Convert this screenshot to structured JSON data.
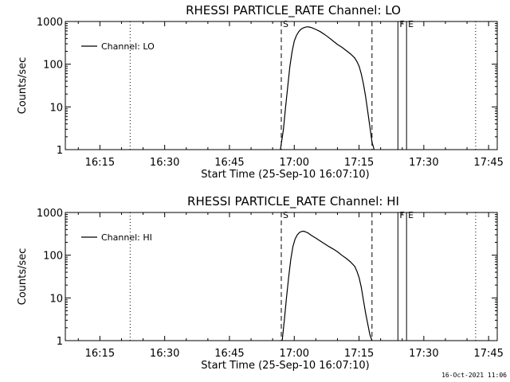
{
  "chart_data": [
    {
      "type": "line",
      "title": "RHESSI PARTICLE_RATE Channel: LO",
      "xlabel": "Start Time (25-Sep-10 16:07:10)",
      "ylabel": "Counts/sec",
      "yscale": "log",
      "ylim": [
        1,
        1000
      ],
      "yticks": [
        "1",
        "10",
        "100",
        "1000"
      ],
      "xlim": [
        "16:07",
        "17:47"
      ],
      "xticks": [
        "16:15",
        "16:30",
        "16:45",
        "17:00",
        "17:15",
        "17:30",
        "17:45"
      ],
      "legend": {
        "placement": "top-left",
        "entries": [
          "Channel: LO"
        ]
      },
      "markers": [
        {
          "label": "S",
          "x": "16:57",
          "style": "dashed"
        },
        {
          "label": "",
          "x": "17:18",
          "style": "dashed"
        },
        {
          "label": "F",
          "x": "17:24",
          "style": "solid"
        },
        {
          "label": "E",
          "x": "17:26",
          "style": "solid"
        },
        {
          "label": "",
          "x": "16:22",
          "style": "dotted"
        },
        {
          "label": "",
          "x": "17:42",
          "style": "dotted"
        }
      ],
      "series": [
        {
          "name": "Channel: LO",
          "x": [
            "16:56.8",
            "16:57.5",
            "16:58.0",
            "16:58.5",
            "16:59.0",
            "16:59.5",
            "17:00.0",
            "17:00.5",
            "17:01.0",
            "17:01.5",
            "17:02.0",
            "17:02.5",
            "17:03.0",
            "17:03.5",
            "17:04.0",
            "17:05.0",
            "17:06.0",
            "17:07.0",
            "17:08.0",
            "17:09.0",
            "17:10.0",
            "17:11.0",
            "17:12.0",
            "17:13.0",
            "17:14.0",
            "17:14.5",
            "17:15.0",
            "17:15.5",
            "17:16.0",
            "17:16.5",
            "17:17.0",
            "17:17.5",
            "17:18.0",
            "17:18.5"
          ],
          "values": [
            1,
            3,
            10,
            30,
            90,
            200,
            350,
            470,
            570,
            650,
            700,
            730,
            750,
            740,
            720,
            650,
            580,
            500,
            420,
            350,
            290,
            250,
            210,
            175,
            140,
            115,
            90,
            60,
            35,
            18,
            8,
            3.5,
            1.5,
            1
          ]
        }
      ]
    },
    {
      "type": "line",
      "title": "RHESSI PARTICLE_RATE Channel: HI",
      "xlabel": "Start Time (25-Sep-10 16:07:10)",
      "ylabel": "Counts/sec",
      "yscale": "log",
      "ylim": [
        1,
        1000
      ],
      "yticks": [
        "1",
        "10",
        "100",
        "1000"
      ],
      "xlim": [
        "16:07",
        "17:47"
      ],
      "xticks": [
        "16:15",
        "16:30",
        "16:45",
        "17:00",
        "17:15",
        "17:30",
        "17:45"
      ],
      "legend": {
        "placement": "top-left",
        "entries": [
          "Channel: HI"
        ]
      },
      "markers": [
        {
          "label": "S",
          "x": "16:57",
          "style": "dashed"
        },
        {
          "label": "",
          "x": "17:18",
          "style": "dashed"
        },
        {
          "label": "F",
          "x": "17:24",
          "style": "solid"
        },
        {
          "label": "E",
          "x": "17:26",
          "style": "solid"
        },
        {
          "label": "",
          "x": "16:22",
          "style": "dotted"
        },
        {
          "label": "",
          "x": "17:42",
          "style": "dotted"
        }
      ],
      "series": [
        {
          "name": "Channel: HI",
          "x": [
            "16:57.2",
            "16:57.7",
            "16:58.2",
            "16:58.7",
            "16:59.2",
            "16:59.7",
            "17:00.2",
            "17:00.7",
            "17:01.2",
            "17:01.7",
            "17:02.2",
            "17:02.7",
            "17:03.2",
            "17:04.0",
            "17:05.0",
            "17:06.0",
            "17:07.0",
            "17:08.0",
            "17:09.0",
            "17:10.0",
            "17:11.0",
            "17:12.0",
            "17:13.0",
            "17:14.0",
            "17:14.5",
            "17:15.0",
            "17:15.5",
            "17:16.0",
            "17:16.5",
            "17:17.0",
            "17:17.5",
            "17:18.0"
          ],
          "values": [
            1,
            3,
            10,
            30,
            80,
            160,
            240,
            300,
            340,
            360,
            365,
            350,
            330,
            290,
            250,
            215,
            185,
            160,
            140,
            120,
            100,
            85,
            70,
            55,
            42,
            30,
            18,
            9,
            4.5,
            2.5,
            1.4,
            1
          ]
        }
      ]
    }
  ],
  "footer": {
    "timestamp": "16-Oct-2021 11:06"
  }
}
